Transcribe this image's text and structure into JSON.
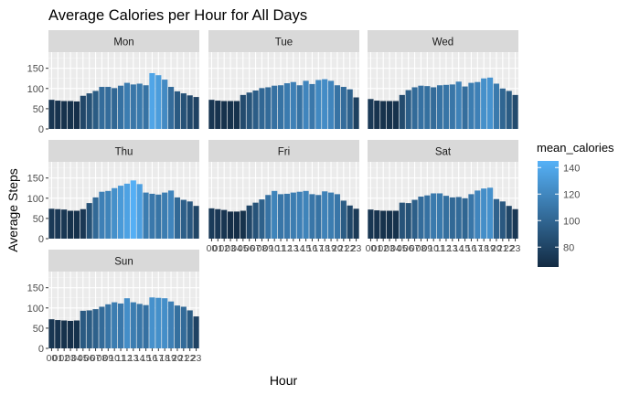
{
  "chart_data": {
    "type": "bar",
    "title": "Average Calories per Hour for All Days",
    "xlabel": "Hour",
    "ylabel": "Average Steps",
    "ylim": [
      0,
      190
    ],
    "y_ticks": [
      0,
      50,
      100,
      150
    ],
    "grid": true,
    "facet_order": [
      "Mon",
      "Tue",
      "Wed",
      "Thu",
      "Fri",
      "Sat",
      "Sun"
    ],
    "categories": [
      "00",
      "01",
      "02",
      "03",
      "04",
      "05",
      "06",
      "07",
      "08",
      "09",
      "10",
      "11",
      "12",
      "13",
      "14",
      "15",
      "16",
      "17",
      "18",
      "19",
      "20",
      "21",
      "22",
      "23"
    ],
    "color_scale": {
      "title": "mean_calories",
      "ticks": [
        80,
        100,
        120,
        140
      ],
      "low": 65,
      "high": 145,
      "low_color": "#132B43",
      "high_color": "#56B1F7"
    },
    "series": [
      {
        "name": "Mon",
        "values": [
          72,
          70,
          69,
          69,
          68,
          82,
          88,
          94,
          104,
          104,
          101,
          107,
          114,
          110,
          112,
          108,
          138,
          133,
          122,
          104,
          93,
          88,
          83,
          79
        ]
      },
      {
        "name": "Tue",
        "values": [
          72,
          70,
          69,
          69,
          69,
          84,
          90,
          95,
          101,
          103,
          107,
          108,
          113,
          116,
          108,
          119,
          111,
          121,
          123,
          119,
          108,
          104,
          98,
          78
        ]
      },
      {
        "name": "Wed",
        "values": [
          74,
          70,
          69,
          69,
          69,
          84,
          96,
          103,
          107,
          106,
          103,
          108,
          109,
          110,
          117,
          105,
          114,
          116,
          125,
          127,
          112,
          100,
          94,
          84
        ]
      },
      {
        "name": "Thu",
        "values": [
          74,
          73,
          72,
          69,
          69,
          73,
          88,
          102,
          116,
          118,
          125,
          131,
          136,
          144,
          135,
          114,
          111,
          109,
          114,
          119,
          102,
          96,
          92,
          81
        ]
      },
      {
        "name": "Fri",
        "values": [
          75,
          73,
          71,
          67,
          67,
          69,
          82,
          89,
          97,
          108,
          118,
          110,
          111,
          114,
          116,
          118,
          110,
          108,
          117,
          114,
          110,
          94,
          82,
          74
        ]
      },
      {
        "name": "Sat",
        "values": [
          72,
          70,
          69,
          69,
          69,
          89,
          88,
          96,
          104,
          107,
          112,
          112,
          106,
          102,
          103,
          100,
          110,
          119,
          124,
          126,
          98,
          92,
          81,
          73
        ]
      },
      {
        "name": "Sun",
        "values": [
          72,
          70,
          69,
          68,
          69,
          93,
          94,
          97,
          103,
          109,
          114,
          111,
          124,
          114,
          110,
          107,
          126,
          125,
          124,
          116,
          106,
          103,
          94,
          79
        ]
      }
    ]
  }
}
